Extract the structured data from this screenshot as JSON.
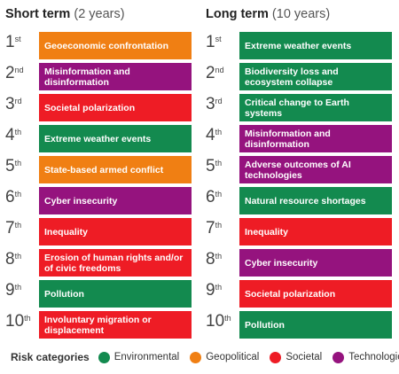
{
  "colors": {
    "environmental": "#138A4F",
    "geopolitical": "#F07F13",
    "societal": "#EE1C25",
    "technological": "#95137E"
  },
  "short_term": {
    "title": "Short term",
    "subtitle": "(2 years)",
    "items": [
      {
        "num": "1",
        "suffix": "st",
        "label": "Geoeconomic confrontation",
        "category": "geopolitical"
      },
      {
        "num": "2",
        "suffix": "nd",
        "label": "Misinformation and disinformation",
        "category": "technological"
      },
      {
        "num": "3",
        "suffix": "rd",
        "label": "Societal polarization",
        "category": "societal"
      },
      {
        "num": "4",
        "suffix": "th",
        "label": "Extreme weather events",
        "category": "environmental"
      },
      {
        "num": "5",
        "suffix": "th",
        "label": "State-based armed conflict",
        "category": "geopolitical"
      },
      {
        "num": "6",
        "suffix": "th",
        "label": "Cyber insecurity",
        "category": "technological"
      },
      {
        "num": "7",
        "suffix": "th",
        "label": "Inequality",
        "category": "societal"
      },
      {
        "num": "8",
        "suffix": "th",
        "label": "Erosion of human rights and/or of civic freedoms",
        "category": "societal"
      },
      {
        "num": "9",
        "suffix": "th",
        "label": "Pollution",
        "category": "environmental"
      },
      {
        "num": "10",
        "suffix": "th",
        "label": "Involuntary migration or displacement",
        "category": "societal"
      }
    ]
  },
  "long_term": {
    "title": "Long term",
    "subtitle": "(10 years)",
    "items": [
      {
        "num": "1",
        "suffix": "st",
        "label": "Extreme weather events",
        "category": "environmental"
      },
      {
        "num": "2",
        "suffix": "nd",
        "label": "Biodiversity loss and ecosystem collapse",
        "category": "environmental"
      },
      {
        "num": "3",
        "suffix": "rd",
        "label": "Critical change to Earth systems",
        "category": "environmental"
      },
      {
        "num": "4",
        "suffix": "th",
        "label": "Misinformation and disinformation",
        "category": "technological"
      },
      {
        "num": "5",
        "suffix": "th",
        "label": "Adverse outcomes of AI technologies",
        "category": "technological"
      },
      {
        "num": "6",
        "suffix": "th",
        "label": "Natural resource shortages",
        "category": "environmental"
      },
      {
        "num": "7",
        "suffix": "th",
        "label": "Inequality",
        "category": "societal"
      },
      {
        "num": "8",
        "suffix": "th",
        "label": "Cyber insecurity",
        "category": "technological"
      },
      {
        "num": "9",
        "suffix": "th",
        "label": "Societal polarization",
        "category": "societal"
      },
      {
        "num": "10",
        "suffix": "th",
        "label": "Pollution",
        "category": "environmental"
      }
    ]
  },
  "legend": {
    "title": "Risk categories",
    "items": [
      {
        "label": "Environmental",
        "category": "environmental"
      },
      {
        "label": "Geopolitical",
        "category": "geopolitical"
      },
      {
        "label": "Societal",
        "category": "societal"
      },
      {
        "label": "Technological",
        "category": "technological"
      }
    ]
  }
}
